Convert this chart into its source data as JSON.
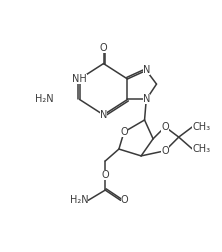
{
  "bg_color": "#ffffff",
  "line_color": "#3a3a3a",
  "line_width": 1.1,
  "font_size": 7.0,
  "figsize": [
    2.22,
    2.52
  ],
  "dpi": 100,
  "xlim": [
    0,
    10
  ],
  "ylim": [
    0,
    11.35
  ]
}
